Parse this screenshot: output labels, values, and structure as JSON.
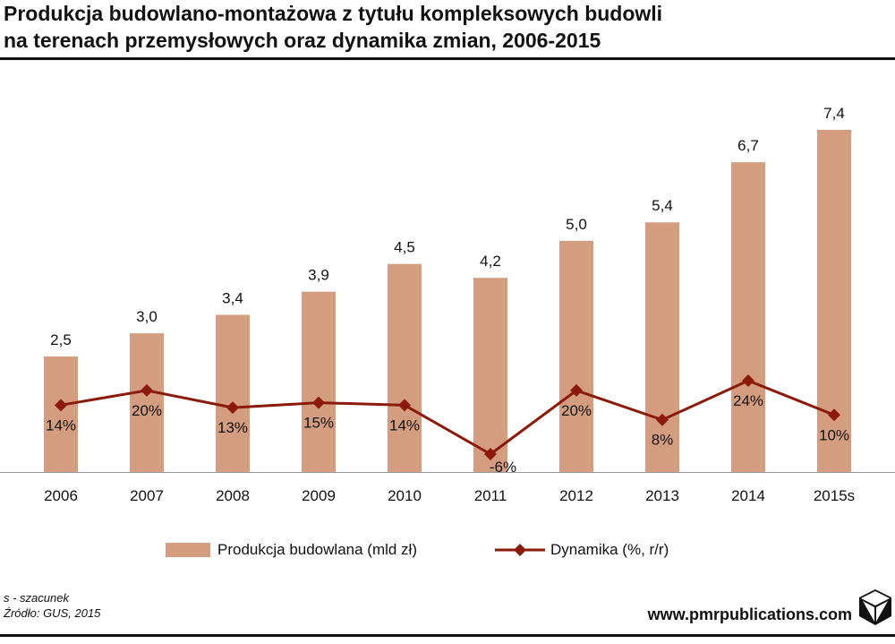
{
  "title": {
    "line1": "Produkcja budowlano-montażowa z tytułu kompleksowych budowli",
    "line2": "na terenach przemysłowych oraz dynamika zmian, 2006-2015"
  },
  "colors": {
    "bar": "#d49d7f",
    "line": "#8b1a0a",
    "axis": "#999999",
    "rule": "#111111"
  },
  "chart_data": {
    "type": "bar",
    "categories": [
      "2006",
      "2007",
      "2008",
      "2009",
      "2010",
      "2011",
      "2012",
      "2013",
      "2014",
      "2015s"
    ],
    "series": [
      {
        "name": "Produkcja budowlana (mld zł)",
        "type": "bar",
        "values": [
          2.5,
          3.0,
          3.4,
          3.9,
          4.5,
          4.2,
          5.0,
          5.4,
          6.7,
          7.4
        ],
        "labels": [
          "2,5",
          "3,0",
          "3,4",
          "3,9",
          "4,5",
          "4,2",
          "5,0",
          "5,4",
          "6,7",
          "7,4"
        ]
      },
      {
        "name": "Dynamika (%, r/r)",
        "type": "line",
        "values": [
          14,
          20,
          13,
          15,
          14,
          -6,
          20,
          8,
          24,
          10
        ],
        "labels": [
          "14%",
          "20%",
          "13%",
          "15%",
          "14%",
          "-6%",
          "20%",
          "8%",
          "24%",
          "10%"
        ]
      }
    ],
    "bar_axis": {
      "min": 0,
      "max": 7.4
    },
    "line_axis": {
      "min": -6,
      "max": 24
    },
    "grid": false,
    "legend_position": "bottom"
  },
  "legend": {
    "bars_label": "Produkcja budowlana (mld zł)",
    "line_label": "Dynamika (%, r/r)"
  },
  "footer": {
    "note": "s - szacunek",
    "source": "Źródło: GUS, 2015",
    "website": "www.pmrpublications.com",
    "logo_icon": "pmr-cube-logo-icon"
  }
}
